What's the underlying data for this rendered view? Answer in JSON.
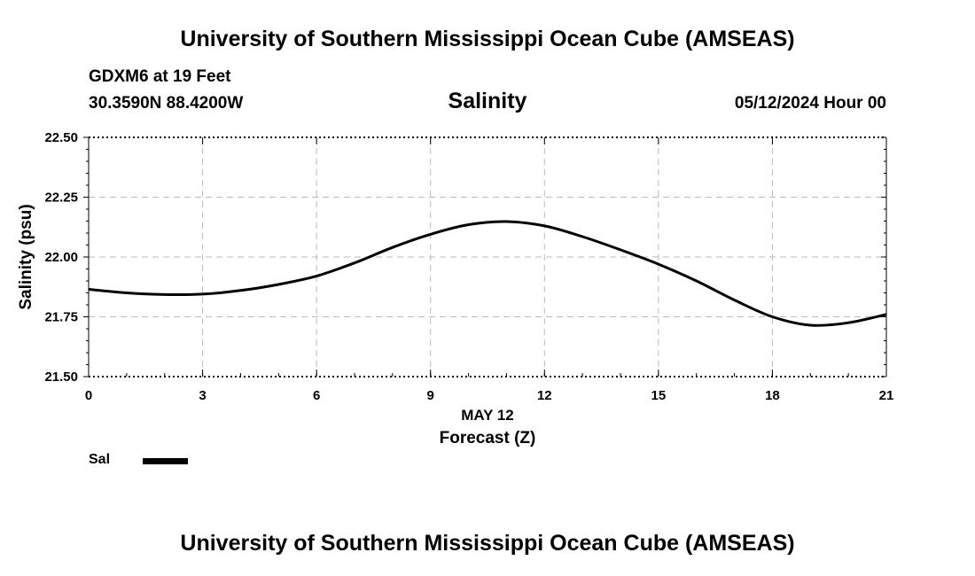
{
  "header": {
    "title_top": "University of Southern Mississippi Ocean Cube (AMSEAS)",
    "station": "GDXM6 at 19 Feet",
    "coordinates": "30.3590N  88.4200W",
    "chart_title": "Salinity",
    "datetime": "05/12/2024 Hour 00"
  },
  "footer": {
    "title_bottom": "University of Southern Mississippi Ocean Cube (AMSEAS)"
  },
  "legend": {
    "label": "Sal",
    "color": "#000000"
  },
  "chart_data": {
    "type": "line",
    "title": "Salinity",
    "xlabel": "Forecast (Z)",
    "xsublabel": "MAY 12",
    "ylabel": "Salinity (psu)",
    "xlim": [
      0,
      21
    ],
    "ylim": [
      21.5,
      22.5
    ],
    "xticks": [
      0,
      3,
      6,
      9,
      12,
      15,
      18,
      21
    ],
    "xtick_labels": [
      "0",
      "3",
      "6",
      "9",
      "12",
      "15",
      "18",
      "21"
    ],
    "yticks": [
      21.5,
      21.75,
      22.0,
      22.25,
      22.5
    ],
    "ytick_labels": [
      "21.50",
      "21.75",
      "22.00",
      "22.25",
      "22.50"
    ],
    "grid": true,
    "series": [
      {
        "name": "Sal",
        "color": "#000000",
        "x": [
          0,
          1,
          2,
          3,
          4,
          5,
          6,
          7,
          8,
          9,
          10,
          11,
          12,
          13,
          14,
          15,
          16,
          17,
          18,
          19,
          20,
          21
        ],
        "y": [
          21.865,
          21.85,
          21.843,
          21.845,
          21.86,
          21.885,
          21.92,
          21.975,
          22.04,
          22.095,
          22.135,
          22.148,
          22.13,
          22.085,
          22.03,
          21.97,
          21.9,
          21.82,
          21.75,
          21.715,
          21.725,
          21.76
        ]
      }
    ]
  }
}
